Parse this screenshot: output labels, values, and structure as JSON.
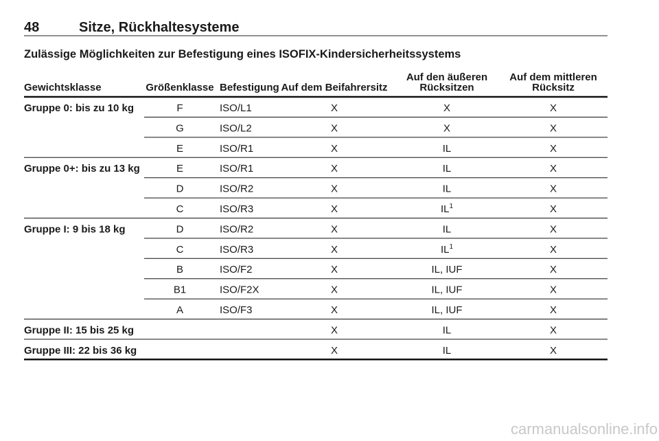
{
  "header": {
    "page_number": "48",
    "section": "Sitze, Rückhaltesysteme"
  },
  "subtitle": "Zulässige Möglichkeiten zur Befestigung eines ISOFIX-Kindersicherheitssystems",
  "table": {
    "columns": [
      [
        "Gewichtsklasse"
      ],
      [
        "Größenklasse"
      ],
      [
        "Befestigung"
      ],
      [
        "Auf dem Beifahrersitz"
      ],
      [
        "Auf den äußeren",
        "Rücksitzen"
      ],
      [
        "Auf dem mittleren",
        "Rücksitz"
      ]
    ],
    "groups": [
      {
        "label": "Gruppe 0: bis zu 10 kg",
        "rows": [
          [
            "F",
            "ISO/L1",
            "X",
            "X",
            "X"
          ],
          [
            "G",
            "ISO/L2",
            "X",
            "X",
            "X"
          ],
          [
            "E",
            "ISO/R1",
            "X",
            "IL",
            "X"
          ]
        ]
      },
      {
        "label": "Gruppe 0+: bis zu 13 kg",
        "rows": [
          [
            "E",
            "ISO/R1",
            "X",
            "IL",
            "X"
          ],
          [
            "D",
            "ISO/R2",
            "X",
            "IL",
            "X"
          ],
          [
            "C",
            "ISO/R3",
            "X",
            {
              "text": "IL",
              "sup": "1"
            },
            "X"
          ]
        ]
      },
      {
        "label": "Gruppe I: 9 bis 18 kg",
        "rows": [
          [
            "D",
            "ISO/R2",
            "X",
            "IL",
            "X"
          ],
          [
            "C",
            "ISO/R3",
            "X",
            {
              "text": "IL",
              "sup": "1"
            },
            "X"
          ],
          [
            "B",
            "ISO/F2",
            "X",
            "IL, IUF",
            "X"
          ],
          [
            "B1",
            "ISO/F2X",
            "X",
            "IL, IUF",
            "X"
          ],
          [
            "A",
            "ISO/F3",
            "X",
            "IL, IUF",
            "X"
          ]
        ]
      },
      {
        "label": "Gruppe II: 15 bis 25 kg",
        "rows": [
          [
            "X",
            "IL",
            "X"
          ]
        ]
      },
      {
        "label": "Gruppe III: 22 bis 36 kg",
        "rows": [
          [
            "X",
            "IL",
            "X"
          ]
        ]
      }
    ]
  },
  "watermark": "carmanualsonline.info"
}
